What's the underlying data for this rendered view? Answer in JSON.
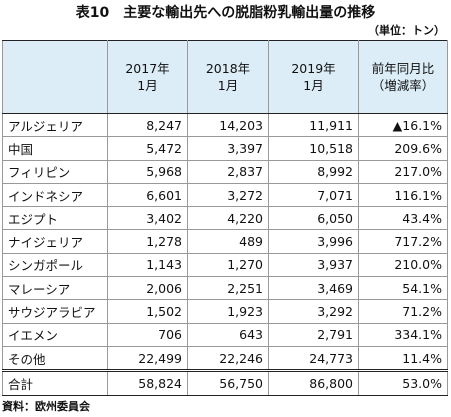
{
  "header": {
    "title": "表10　主要な輸出先への脱脂粉乳輸出量の推移",
    "unit": "（単位：トン）"
  },
  "table": {
    "columns": [
      [
        "2017年",
        "1月"
      ],
      [
        "2018年",
        "1月"
      ],
      [
        "2019年",
        "1月"
      ],
      [
        "前年同月比",
        "（増減率）"
      ]
    ],
    "rows": [
      [
        "アルジェリア",
        "8,247",
        "14,203",
        "11,911",
        "▲16.1%"
      ],
      [
        "中国",
        "5,472",
        "3,397",
        "10,518",
        "209.6%"
      ],
      [
        "フィリピン",
        "5,968",
        "2,837",
        "8,992",
        "217.0%"
      ],
      [
        "インドネシア",
        "6,601",
        "3,272",
        "7,071",
        "116.1%"
      ],
      [
        "エジプト",
        "3,402",
        "4,220",
        "6,050",
        "43.4%"
      ],
      [
        "ナイジェリア",
        "1,278",
        "489",
        "3,996",
        "717.2%"
      ],
      [
        "シンガポール",
        "1,143",
        "1,270",
        "3,937",
        "210.0%"
      ],
      [
        "マレーシア",
        "2,006",
        "2,251",
        "3,469",
        "54.1%"
      ],
      [
        "サウジアラビア",
        "1,502",
        "1,923",
        "3,292",
        "71.2%"
      ],
      [
        "イエメン",
        "706",
        "643",
        "2,791",
        "334.1%"
      ],
      [
        "その他",
        "22,499",
        "22,246",
        "24,773",
        "11.4%"
      ],
      [
        "合計",
        "58,824",
        "56,750",
        "86,800",
        "53.0%"
      ]
    ]
  },
  "footer": {
    "source": "資料：欧州委員会"
  }
}
